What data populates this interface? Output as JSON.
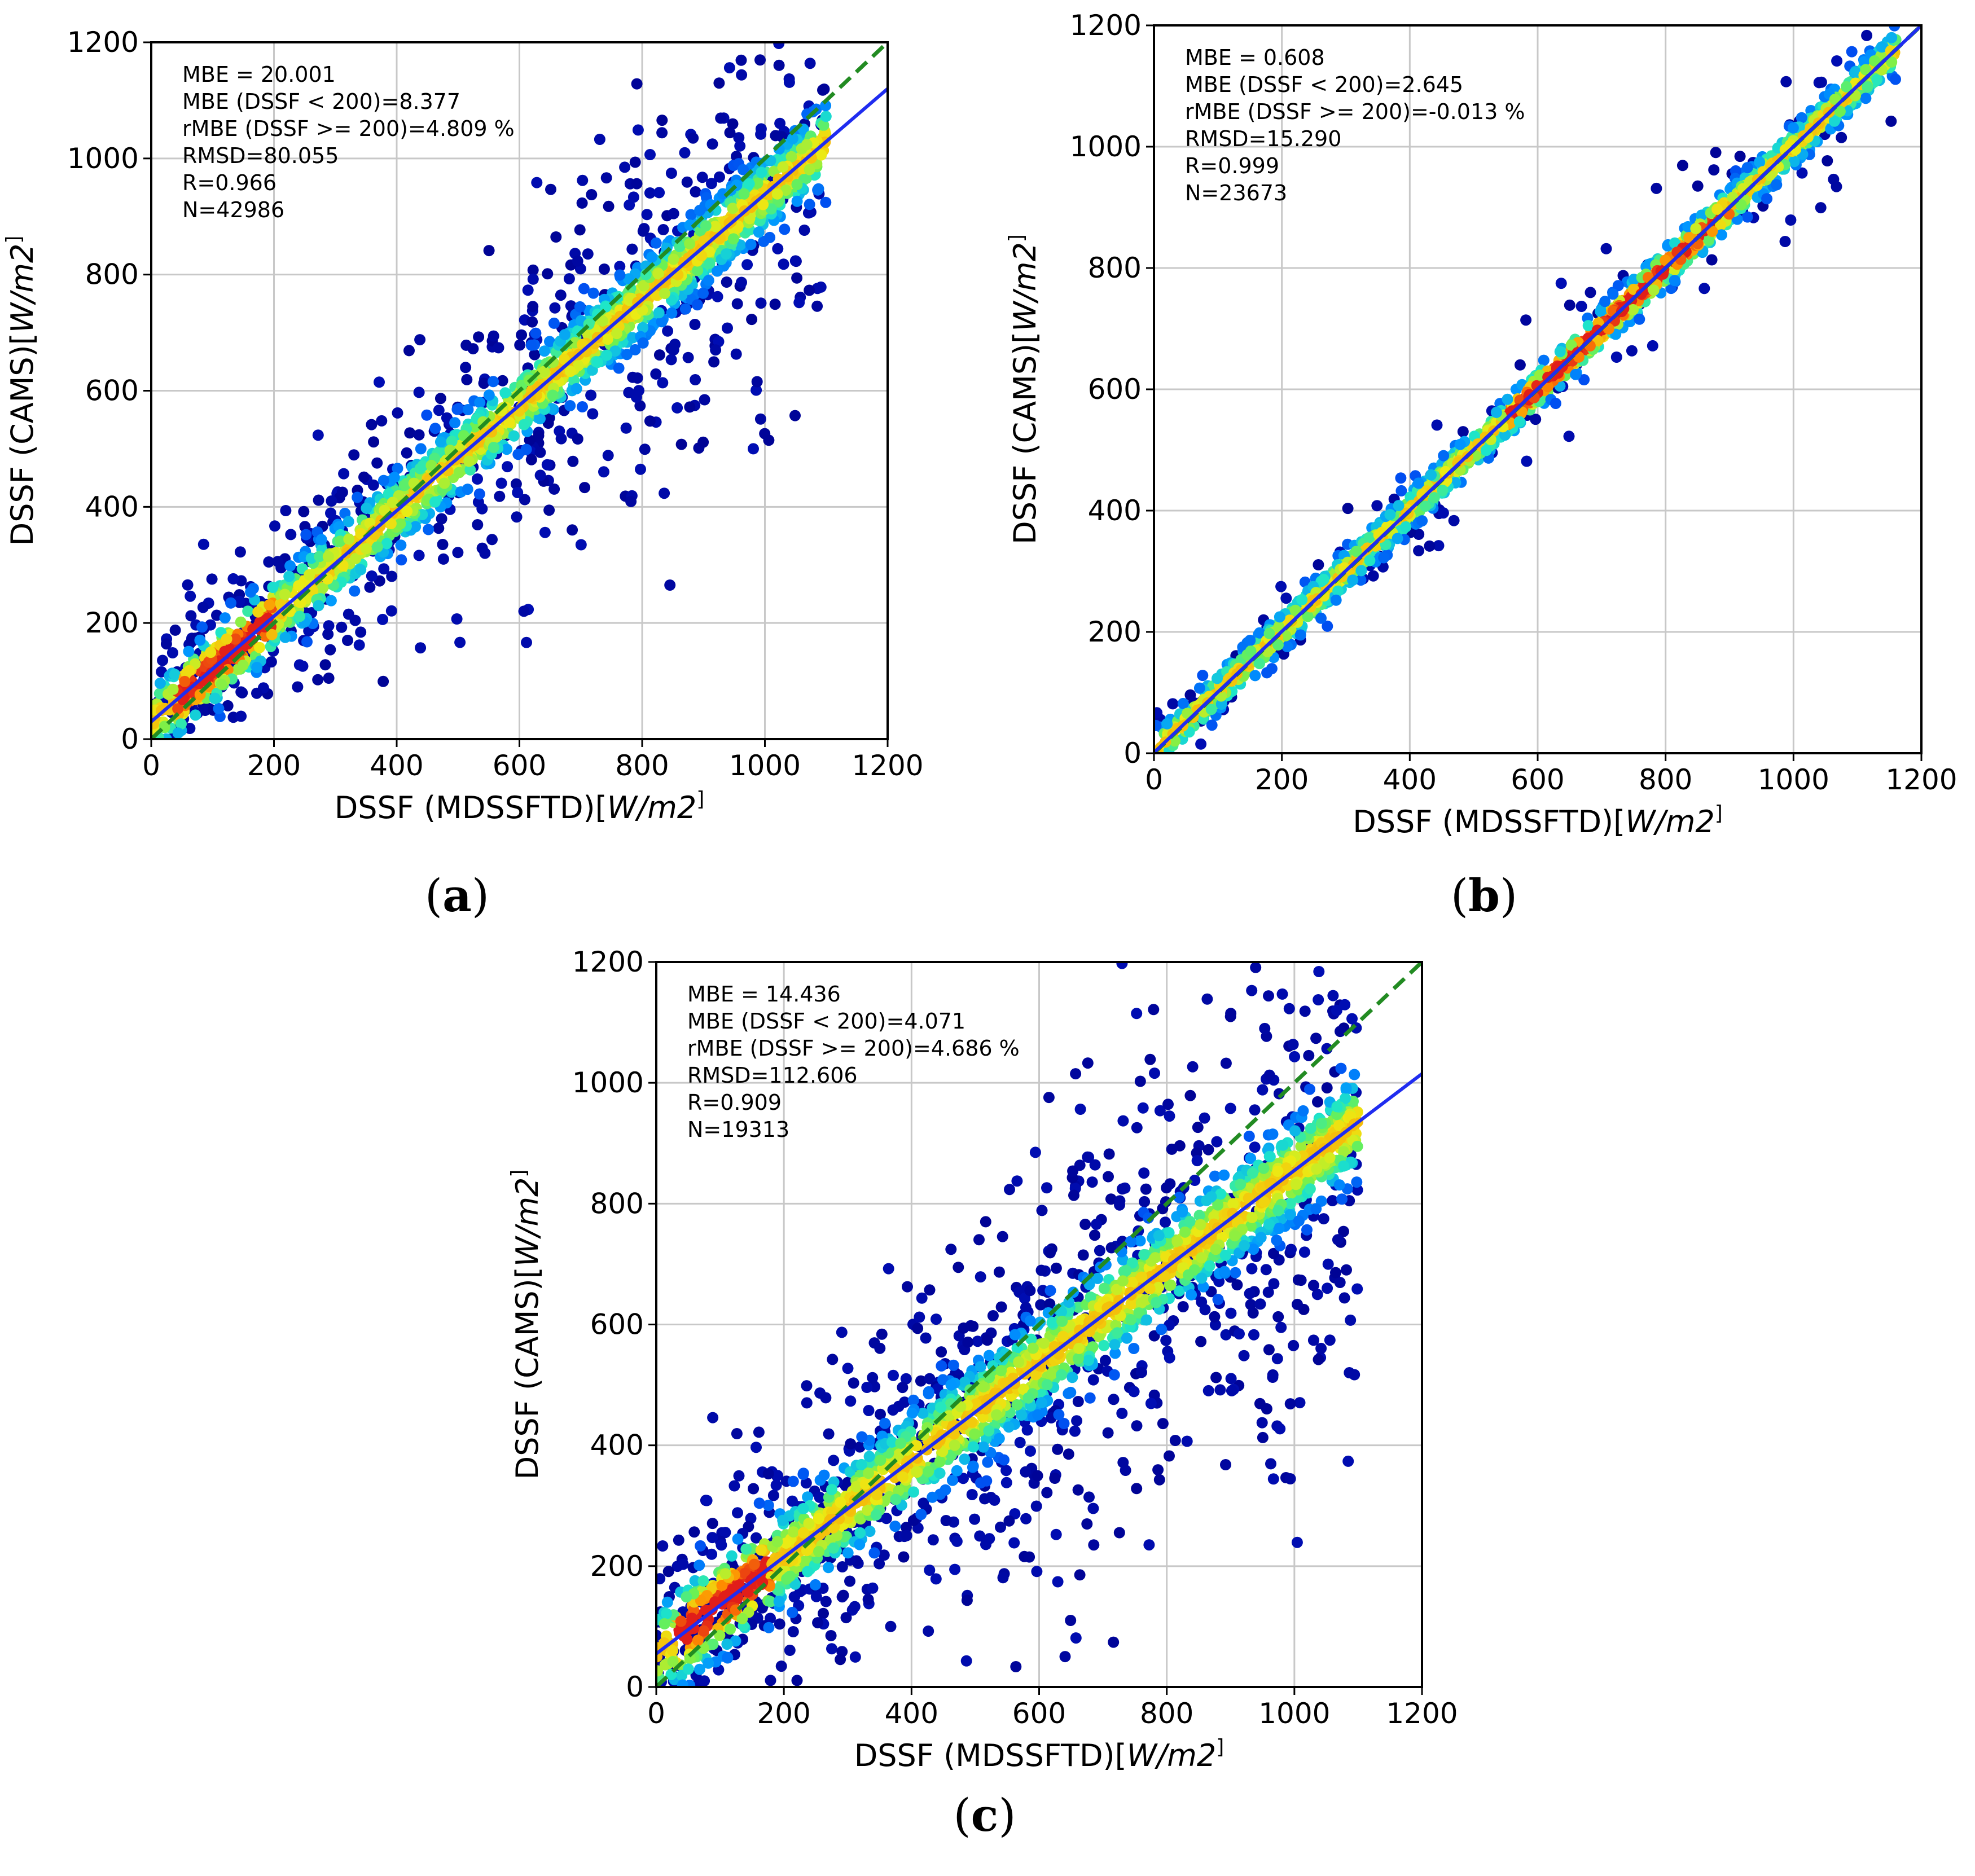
{
  "figure": {
    "colors": {
      "fit_line": "#1f2cf0",
      "identity_line": "#228b22",
      "frame": "#000000",
      "grid": "#c8c8c8",
      "density_low": "#00008b",
      "density_high": "#e8231a"
    }
  },
  "chart_data": [
    {
      "id": "a",
      "panel_label": "a",
      "type": "scatter",
      "subtype": "density scatter",
      "xlabel": "DSSF (MDSSFTD)",
      "xlabel_unit": "[W/m2]",
      "ylabel": "DSSF (CAMS)",
      "ylabel_unit": "[W/m2]",
      "xlim": [
        0,
        1200
      ],
      "ylim": [
        0,
        1200
      ],
      "xticks": [
        "0",
        "200",
        "400",
        "600",
        "800",
        "1000",
        "1200"
      ],
      "yticks": [
        "0",
        "200",
        "400",
        "600",
        "800",
        "1000",
        "1200"
      ],
      "grid": true,
      "stats": [
        "MBE = 20.001",
        "MBE (DSSF < 200)=8.377",
        "rMBE (DSSF >= 200)=4.809 %",
        "RMSD=80.055",
        "R=0.966",
        "N=42986"
      ],
      "fit_line": {
        "x": [
          0,
          1200
        ],
        "y": [
          30,
          1120
        ]
      },
      "identity_line": {
        "x": [
          0,
          1200
        ],
        "y": [
          0,
          1200
        ]
      },
      "spread": 0.7,
      "hot_region": [
        40,
        200
      ],
      "max_x": 1100
    },
    {
      "id": "b",
      "panel_label": "b",
      "type": "scatter",
      "subtype": "density scatter",
      "xlabel": "DSSF (MDSSFTD)",
      "xlabel_unit": "[W/m2]",
      "ylabel": "DSSF (CAMS)",
      "ylabel_unit": "[W/m2]",
      "xlim": [
        0,
        1200
      ],
      "ylim": [
        0,
        1200
      ],
      "xticks": [
        "0",
        "200",
        "400",
        "600",
        "800",
        "1000",
        "1200"
      ],
      "yticks": [
        "0",
        "200",
        "400",
        "600",
        "800",
        "1000",
        "1200"
      ],
      "grid": true,
      "stats": [
        "MBE = 0.608",
        "MBE (DSSF < 200)=2.645",
        "rMBE (DSSF >= 200)=-0.013 %",
        "RMSD=15.290",
        "R=0.999",
        "N=23673"
      ],
      "fit_line": {
        "x": [
          0,
          1200
        ],
        "y": [
          1,
          1200
        ]
      },
      "identity_line": {
        "x": [
          0,
          1200
        ],
        "y": [
          0,
          1200
        ]
      },
      "spread": 0.15,
      "hot_region": [
        550,
        900
      ],
      "max_x": 1160
    },
    {
      "id": "c",
      "panel_label": "c",
      "type": "scatter",
      "subtype": "density scatter",
      "xlabel": "DSSF (MDSSFTD)",
      "xlabel_unit": "[W/m2]",
      "ylabel": "DSSF (CAMS)",
      "ylabel_unit": "[W/m2]",
      "xlim": [
        0,
        1200
      ],
      "ylim": [
        0,
        1200
      ],
      "xticks": [
        "0",
        "200",
        "400",
        "600",
        "800",
        "1000",
        "1200"
      ],
      "yticks": [
        "0",
        "200",
        "400",
        "600",
        "800",
        "1000",
        "1200"
      ],
      "grid": true,
      "stats": [
        "MBE = 14.436",
        "MBE (DSSF < 200)=4.071",
        "rMBE (DSSF >= 200)=4.686 %",
        "RMSD=112.606",
        "R=0.909",
        "N=19313"
      ],
      "fit_line": {
        "x": [
          0,
          1200
        ],
        "y": [
          55,
          1015
        ]
      },
      "identity_line": {
        "x": [
          0,
          1200
        ],
        "y": [
          0,
          1200
        ]
      },
      "spread": 1.0,
      "hot_region": [
        30,
        180
      ],
      "max_x": 1100
    }
  ]
}
